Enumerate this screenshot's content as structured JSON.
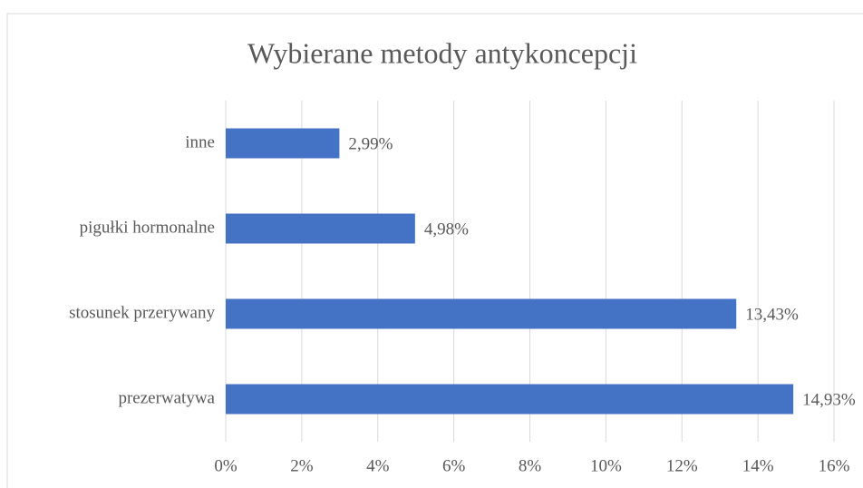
{
  "chart_data": {
    "type": "bar",
    "orientation": "horizontal",
    "title": "Wybierane metody antykoncepcji",
    "categories": [
      "inne",
      "pigułki hormonalne",
      "stosunek przerywany",
      "prezerwatywa"
    ],
    "values": [
      2.99,
      4.98,
      13.43,
      14.93
    ],
    "value_labels": [
      "2,99%",
      "4,98%",
      "13,43%",
      "14,93%"
    ],
    "color": "#4472c4",
    "xlim": [
      0,
      16
    ],
    "xticks": [
      {
        "value": 0,
        "label": "0%"
      },
      {
        "value": 2,
        "label": "2%"
      },
      {
        "value": 4,
        "label": "4%"
      },
      {
        "value": 6,
        "label": "6%"
      },
      {
        "value": 8,
        "label": "8%"
      },
      {
        "value": 10,
        "label": "10%"
      },
      {
        "value": 12,
        "label": "12%"
      },
      {
        "value": 14,
        "label": "14%"
      },
      {
        "value": 16,
        "label": "16%"
      }
    ],
    "grid": true
  }
}
